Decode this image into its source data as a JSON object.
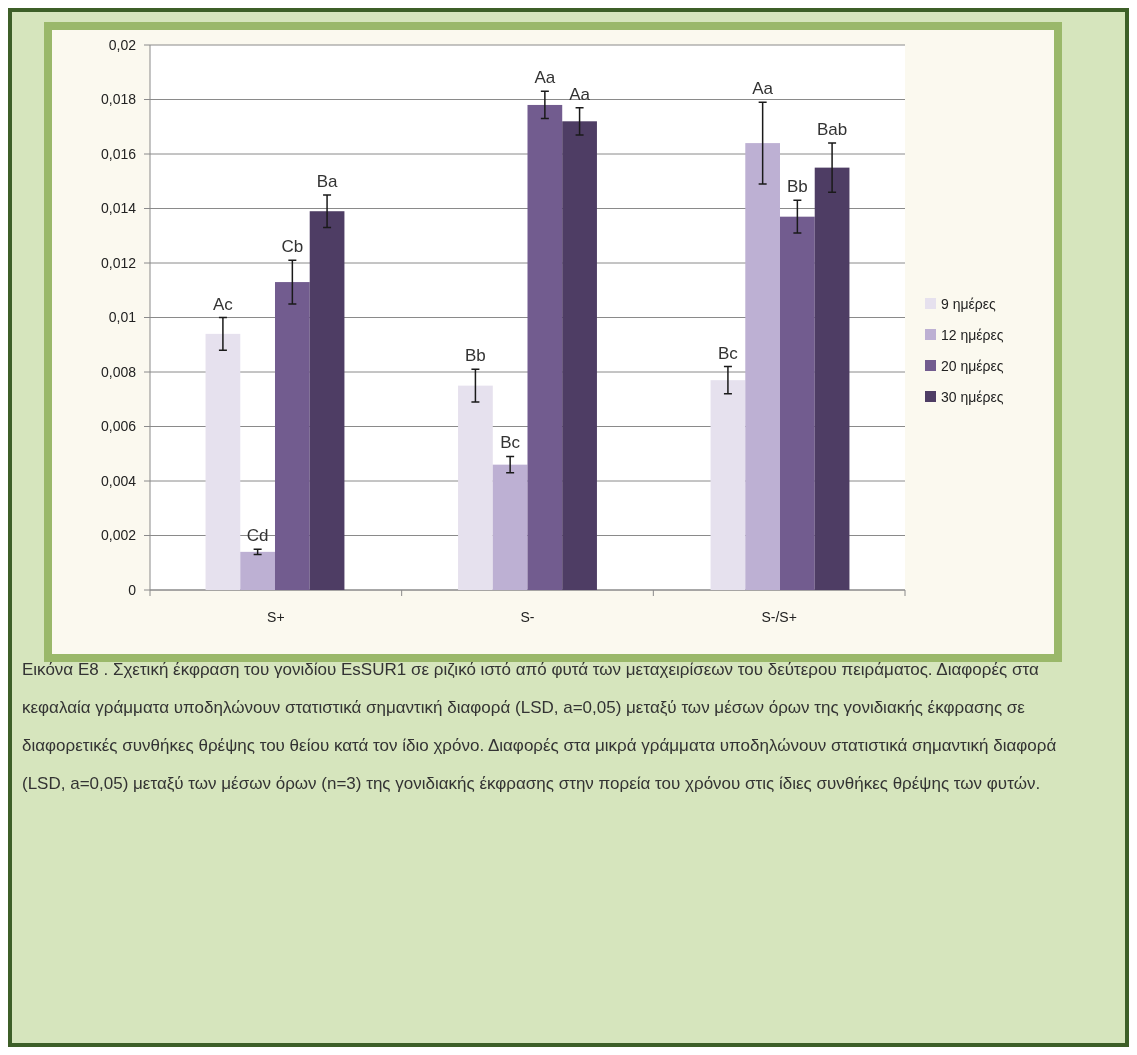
{
  "chart_data": {
    "type": "bar",
    "categories": [
      "S+",
      "S-",
      "S-/S+"
    ],
    "series": [
      {
        "name": "9 ημέρες",
        "color": "#e6e1ee",
        "values": [
          0.0094,
          0.0075,
          0.0077
        ],
        "errors": [
          0.0006,
          0.0006,
          0.0005
        ],
        "value_labels": [
          "Ac",
          "Bb",
          "Bc"
        ]
      },
      {
        "name": "12 ημέρες",
        "color": "#bdb0d3",
        "values": [
          0.0014,
          0.0046,
          0.0164
        ],
        "errors": [
          0.0001,
          0.0003,
          0.0015
        ],
        "value_labels": [
          "Cd",
          "Bc",
          "Aa"
        ]
      },
      {
        "name": "20 ημέρες",
        "color": "#725c8f",
        "values": [
          0.0113,
          0.0178,
          0.0137
        ],
        "errors": [
          0.0008,
          0.0005,
          0.0006
        ],
        "value_labels": [
          "Cb",
          "Aa",
          "Bb"
        ]
      },
      {
        "name": "30 ημέρες",
        "color": "#4e3d64",
        "values": [
          0.0139,
          0.0172,
          0.0155
        ],
        "errors": [
          0.0006,
          0.0005,
          0.0009
        ],
        "value_labels": [
          "Ba",
          "Aa",
          "Bab"
        ]
      }
    ],
    "ylim": [
      0,
      0.02
    ],
    "yticks": [
      {
        "value": 0,
        "label": "0"
      },
      {
        "value": 0.002,
        "label": "0,002"
      },
      {
        "value": 0.004,
        "label": "0,004"
      },
      {
        "value": 0.006,
        "label": "0,006"
      },
      {
        "value": 0.008,
        "label": "0,008"
      },
      {
        "value": 0.01,
        "label": "0,01"
      },
      {
        "value": 0.012,
        "label": "0,012"
      },
      {
        "value": 0.014,
        "label": "0,014"
      },
      {
        "value": 0.016,
        "label": "0,016"
      },
      {
        "value": 0.018,
        "label": "0,018"
      },
      {
        "value": 0.02,
        "label": "0,02"
      }
    ],
    "grid": "y",
    "legend": "right",
    "annotations": [
      "Εικόνα Ε8 . Σχετική έκφραση του γονιδίου EsSUR1 σε ριζικό ιστό από φυτά των μεταχειρίσεων του δεύτερου πειράματος. Διαφορές στα κεφαλαία γράμματα υποδηλώνουν στατιστικά σημαντική διαφορά (LSD, a=0,05) μεταξύ των μέσων όρων της γονιδιακής έκφρασης σε διαφορετικές συνθήκες θρέψης του θείου κατά τον ίδιο χρόνο. Διαφορές στα μικρά γράμματα υποδηλώνουν στατιστικά σημαντική διαφορά (LSD, a=0,05) μεταξύ των μέσων όρων (n=3) της γονιδιακής έκφρασης στην πορεία του χρόνου στις ίδιες συνθήκες θρέψης των φυτών."
    ]
  }
}
